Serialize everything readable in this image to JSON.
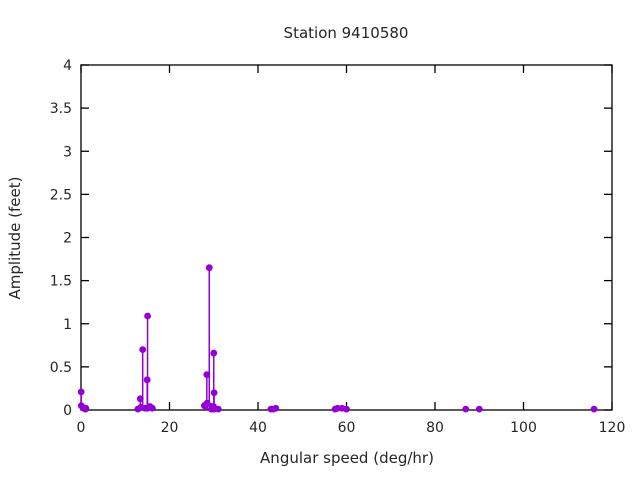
{
  "page": {
    "background": "#ffffff",
    "text_color": "#262626",
    "axis_color": "#000000"
  },
  "chart_data": {
    "type": "stem",
    "title": "Station 9410580",
    "xlabel": "Angular speed (deg/hr)",
    "ylabel": "Amplitude (feet)",
    "xlim": [
      0,
      120
    ],
    "ylim": [
      0,
      4
    ],
    "xticks": [
      0,
      20,
      40,
      60,
      80,
      100,
      120
    ],
    "yticks": [
      0,
      0.5,
      1,
      1.5,
      2,
      2.5,
      3,
      3.5,
      4
    ],
    "grid": false,
    "legend_position": "none",
    "marker_style": "filled-circle",
    "marker_color": "#9400d3",
    "points": [
      [
        0.041,
        0.21
      ],
      [
        0.082,
        0.05
      ],
      [
        0.544,
        0.02
      ],
      [
        1.016,
        0.01
      ],
      [
        1.098,
        0.02
      ],
      [
        12.854,
        0.01
      ],
      [
        13.399,
        0.13
      ],
      [
        13.472,
        0.03
      ],
      [
        13.943,
        0.7
      ],
      [
        14.497,
        0.02
      ],
      [
        14.959,
        0.35
      ],
      [
        15.0,
        0.02
      ],
      [
        15.041,
        1.09
      ],
      [
        15.585,
        0.04
      ],
      [
        16.139,
        0.02
      ],
      [
        27.895,
        0.05
      ],
      [
        27.968,
        0.05
      ],
      [
        28.44,
        0.41
      ],
      [
        28.513,
        0.08
      ],
      [
        28.984,
        1.65
      ],
      [
        29.456,
        0.01
      ],
      [
        29.528,
        0.04
      ],
      [
        29.959,
        0.04
      ],
      [
        30.0,
        0.66
      ],
      [
        30.041,
        0.01
      ],
      [
        30.082,
        0.2
      ],
      [
        31.016,
        0.01
      ],
      [
        42.927,
        0.01
      ],
      [
        43.476,
        0.01
      ],
      [
        44.025,
        0.02
      ],
      [
        57.424,
        0.01
      ],
      [
        57.968,
        0.02
      ],
      [
        58.984,
        0.02
      ],
      [
        60.0,
        0.01
      ],
      [
        86.952,
        0.01
      ],
      [
        90.0,
        0.01
      ],
      [
        115.936,
        0.01
      ]
    ]
  }
}
